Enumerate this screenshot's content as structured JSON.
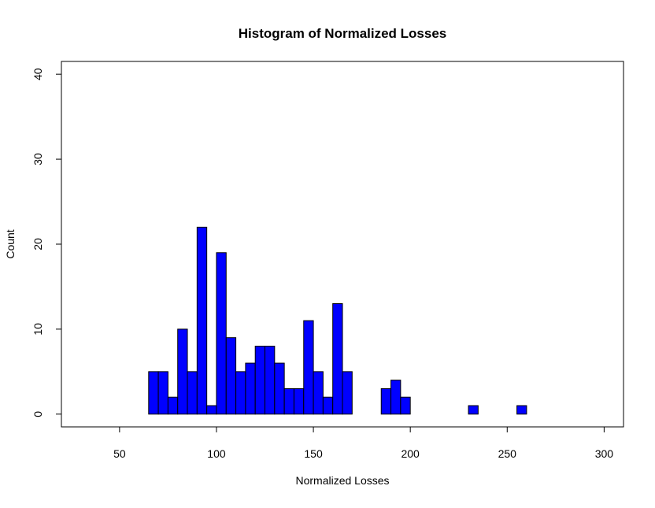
{
  "chart_data": {
    "type": "bar",
    "title": "Histogram of Normalized Losses",
    "xlabel": "Normalized Losses",
    "ylabel": "Count",
    "xlim": [
      20,
      310
    ],
    "ylim": [
      -1.5,
      41.5
    ],
    "xticks": [
      50,
      100,
      150,
      200,
      250,
      300
    ],
    "yticks": [
      0,
      10,
      20,
      30,
      40
    ],
    "bin_width": 5,
    "bin_start": 65,
    "values": [
      5,
      5,
      2,
      10,
      5,
      22,
      1,
      19,
      9,
      5,
      6,
      8,
      8,
      6,
      3,
      3,
      11,
      5,
      2,
      13,
      5,
      0,
      0,
      0,
      3,
      4,
      2,
      0,
      0,
      0,
      0,
      0,
      0,
      1,
      0,
      0,
      0,
      0,
      1
    ],
    "bar_color": "#0000ff",
    "bar_border": "#000000",
    "grid": false
  }
}
